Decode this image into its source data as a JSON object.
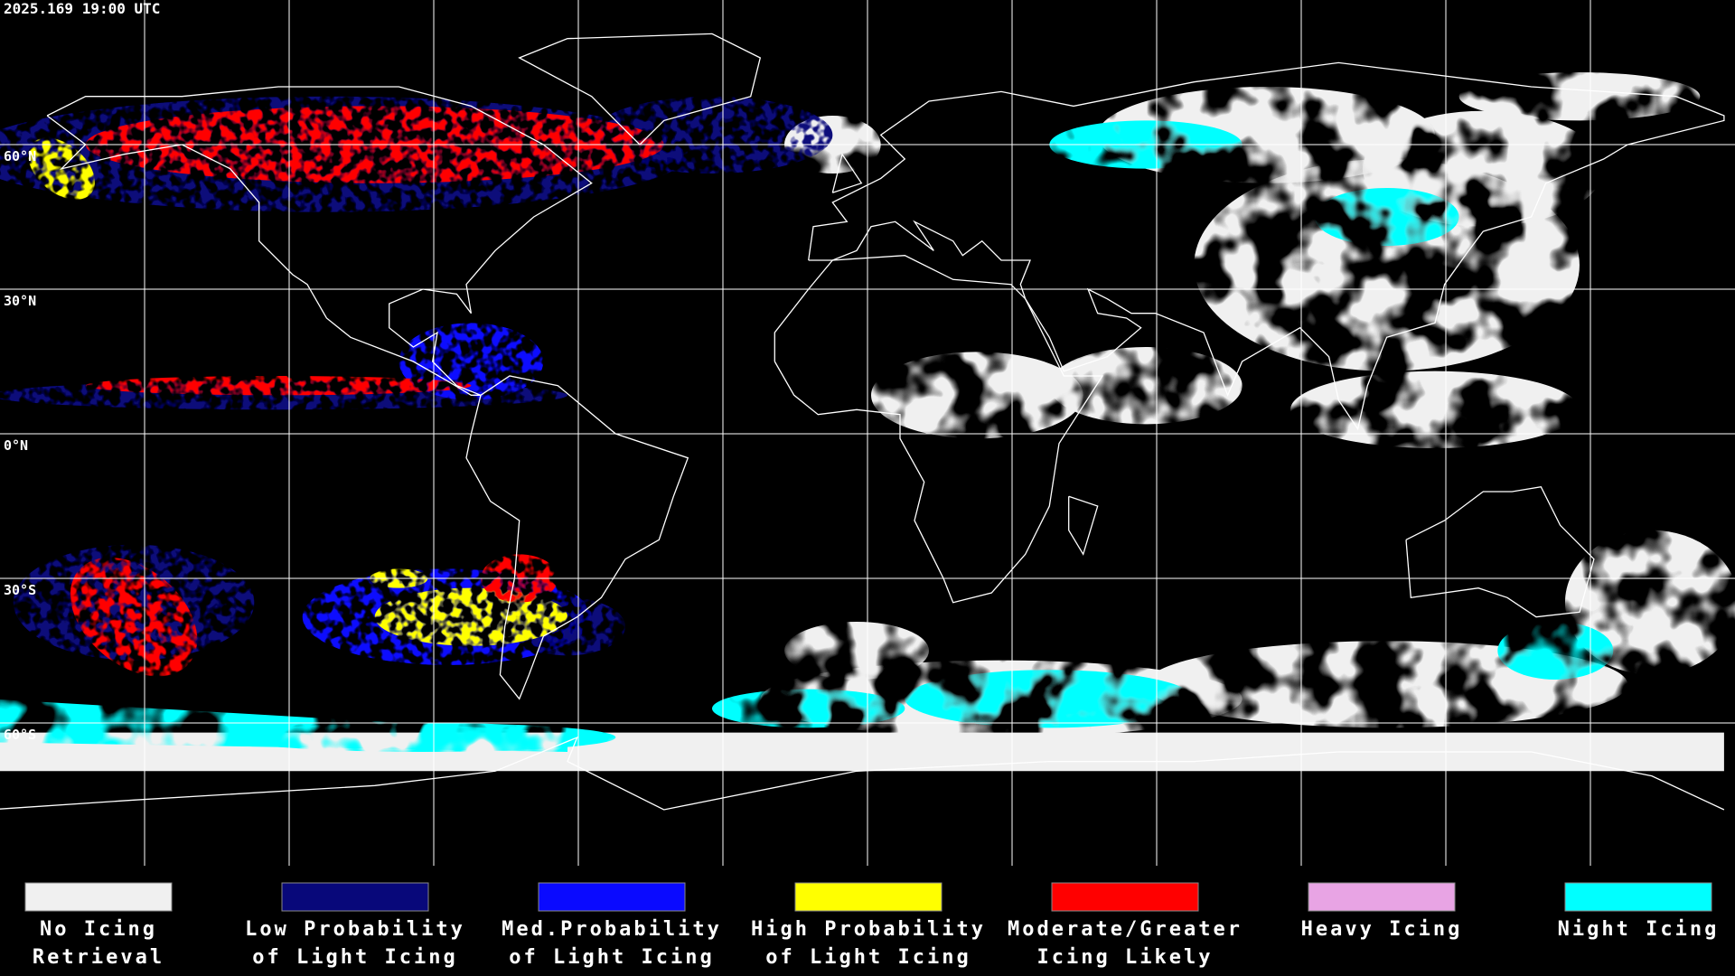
{
  "timestamp": "2025.169 19:00 UTC",
  "latitude_labels": [
    "60°N",
    "30°N",
    "0°N",
    "30°S",
    "60°S"
  ],
  "legend": [
    {
      "label": [
        "No Icing",
        "Retrieval"
      ],
      "color": "#f0f0f0"
    },
    {
      "label": [
        "Low Probability",
        "of Light Icing"
      ],
      "color": "#08087a"
    },
    {
      "label": [
        "Med.Probability",
        "of Light Icing"
      ],
      "color": "#0a0aff"
    },
    {
      "label": [
        "High Probability",
        "of Light Icing"
      ],
      "color": "#ffff00"
    },
    {
      "label": [
        "Moderate/Greater",
        "Icing Likely"
      ],
      "color": "#ff0000"
    },
    {
      "label": [
        "Heavy Icing",
        ""
      ],
      "color": "#e8a4e4"
    },
    {
      "label": [
        "Night Icing",
        ""
      ],
      "color": "#00ffff"
    }
  ]
}
